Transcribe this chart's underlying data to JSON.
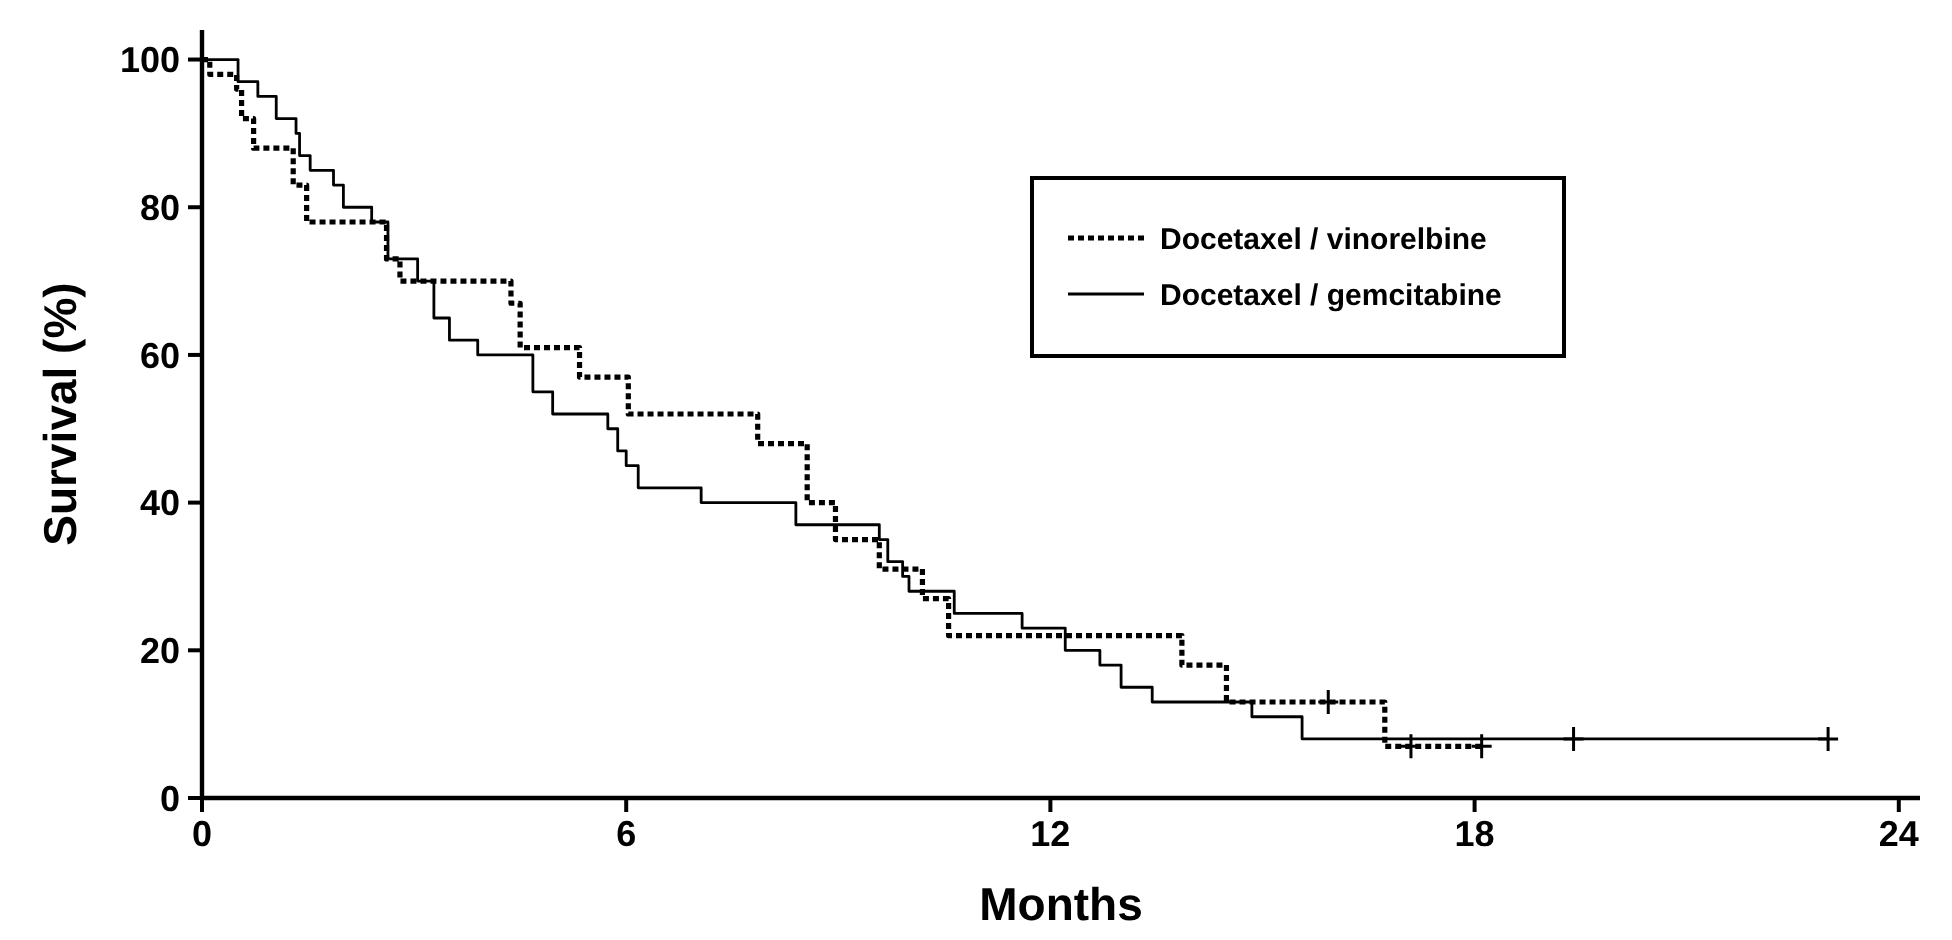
{
  "chart_data": {
    "type": "step",
    "xlabel": "Months",
    "ylabel": "Survival (%)",
    "xlim": [
      0,
      24.3
    ],
    "ylim": [
      0,
      104
    ],
    "xticks": [
      0,
      6,
      12,
      18,
      24
    ],
    "yticks": [
      0,
      20,
      40,
      60,
      80,
      100
    ],
    "grid": false,
    "legend": "top right",
    "series": [
      {
        "name": "Docetaxel / vinorelbine",
        "color": "#000000",
        "line_style": "dotted",
        "x": [
          0,
          0.11,
          0.49,
          0.56,
          0.73,
          1.29,
          1.48,
          2.61,
          2.8,
          4.37,
          4.5,
          5.34,
          6.03,
          7.86,
          8.56,
          8.96,
          9.58,
          10.19,
          10.56,
          13.86,
          14.49,
          16.73,
          18.1
        ],
        "values": [
          100,
          98,
          96,
          92,
          88,
          83,
          78,
          73,
          70,
          67,
          61,
          57,
          52,
          48,
          40,
          35,
          31,
          27,
          22,
          18,
          13,
          7,
          7
        ]
      },
      {
        "name": "Docetaxel / gemcitabine",
        "color": "#000000",
        "line_style": "solid",
        "x": [
          0,
          0.51,
          0.79,
          1.05,
          1.33,
          1.38,
          1.53,
          1.86,
          2.0,
          2.4,
          2.63,
          3.05,
          3.28,
          3.5,
          3.9,
          4.68,
          4.96,
          5.74,
          5.88,
          6.0,
          6.17,
          7.06,
          8.4,
          9.58,
          9.7,
          9.91,
          10.0,
          10.64,
          11.6,
          12.21,
          12.7,
          13.0,
          13.44,
          14.85,
          15.56,
          23.0
        ],
        "values": [
          100,
          97,
          95,
          92,
          90,
          87,
          85,
          83,
          80,
          78,
          73,
          70,
          65,
          62,
          60,
          55,
          52,
          50,
          47,
          45,
          42,
          40,
          37,
          35,
          32,
          30,
          28,
          25,
          23,
          20,
          18,
          15,
          13,
          11,
          8,
          8
        ]
      },
      {
        "type": "scatter",
        "marker": "cross",
        "color": "#000000",
        "x": [
          15.93,
          17.1,
          18.1
        ],
        "values": [
          13,
          7,
          7
        ]
      },
      {
        "type": "scatter",
        "marker": "cross",
        "color": "#000000",
        "x": [
          19.4,
          23.0
        ],
        "values": [
          8,
          8
        ]
      }
    ]
  }
}
